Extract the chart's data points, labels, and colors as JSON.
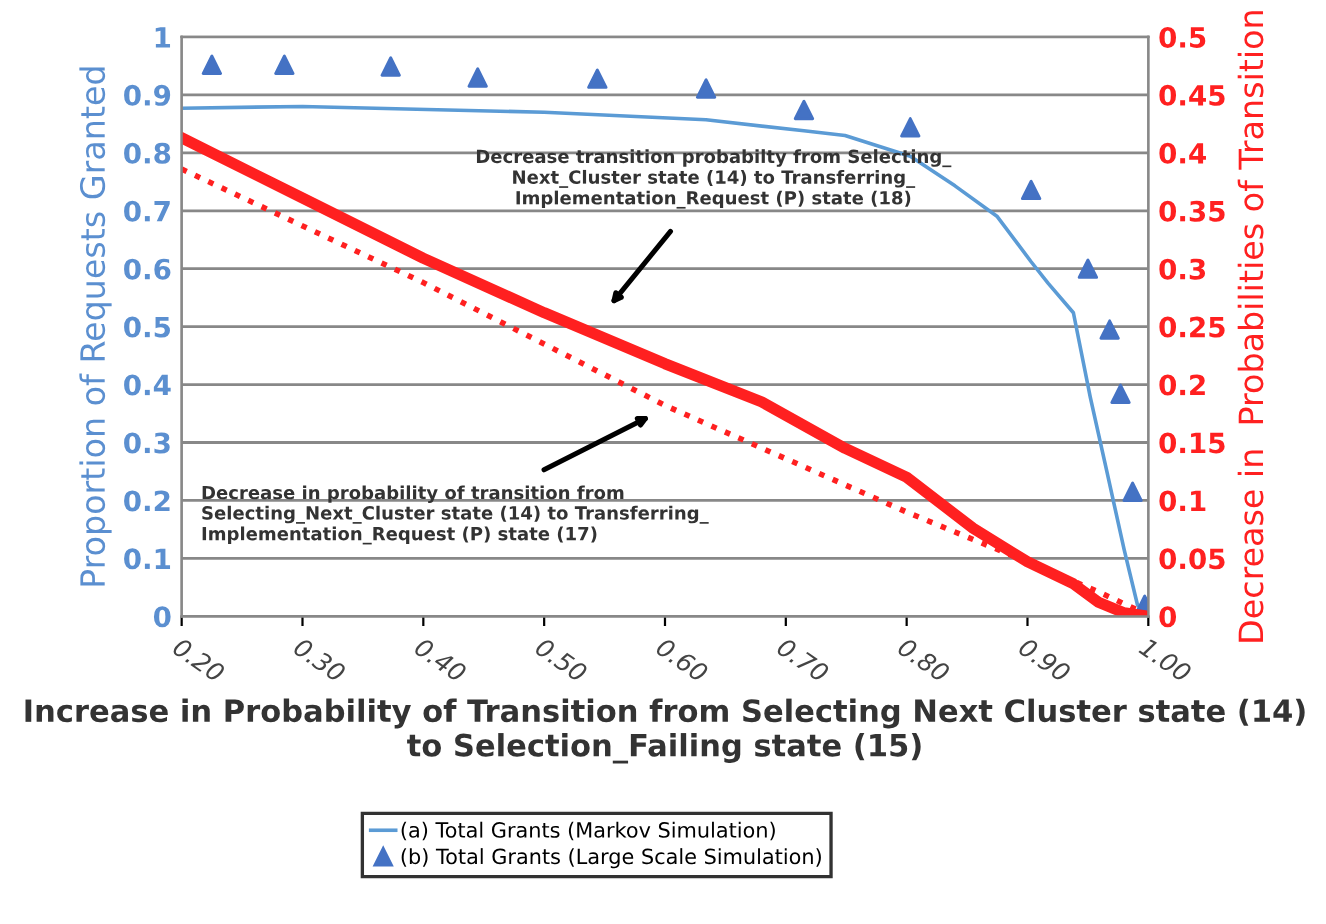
{
  "chart_data": {
    "type": "line",
    "xlabel": "Increase in Probability of Transition from Selecting Next Cluster state (14) to Selection_Failing state (15)",
    "ylabel": "Proportion of Requests Granted",
    "y2label": "Decrease in  Probabilities of Transition",
    "xlim": [
      0.2,
      1.0
    ],
    "xticks": [
      {
        "value": 0.2,
        "label": "0.20"
      },
      {
        "value": 0.3,
        "label": "0.30"
      },
      {
        "value": 0.4,
        "label": "0.40"
      },
      {
        "value": 0.5,
        "label": "0.50"
      },
      {
        "value": 0.6,
        "label": "0.60"
      },
      {
        "value": 0.7,
        "label": "0.70"
      },
      {
        "value": 0.8,
        "label": "0.80"
      },
      {
        "value": 0.9,
        "label": "0.90"
      },
      {
        "value": 1.0,
        "label": "1.00"
      }
    ],
    "ylim": [
      0,
      1
    ],
    "yticks": [
      0,
      0.1,
      0.2,
      0.3,
      0.4,
      0.5,
      0.6,
      0.7,
      0.8,
      0.9,
      1
    ],
    "y2lim": [
      0,
      0.5
    ],
    "y2ticks": [
      0,
      0.05,
      0.1,
      0.15,
      0.2,
      0.25,
      0.3,
      0.35,
      0.4,
      0.45,
      0.5
    ],
    "grid": "y",
    "legend": "bottom",
    "series": [
      {
        "name": "(a) Total Grants (Markov Simulation)",
        "color": "#5b9bd5",
        "marker": "none",
        "line_style": "solid",
        "x": [
          0.2,
          0.3,
          0.5,
          0.634,
          0.715,
          0.749,
          0.803,
          0.84,
          0.875,
          0.903,
          0.917,
          0.938,
          0.952,
          0.966,
          0.98,
          0.991,
          1.0
        ],
        "values": [
          0.877,
          0.88,
          0.87,
          0.857,
          0.838,
          0.83,
          0.794,
          0.743,
          0.69,
          0.612,
          0.575,
          0.524,
          0.378,
          0.247,
          0.115,
          0.02,
          0
        ]
      },
      {
        "name": "(b) Total Grants (Large Scale Simulation)",
        "type": "scatter",
        "color": "#4472c4",
        "marker": "triangle",
        "x": [
          0.225,
          0.285,
          0.373,
          0.445,
          0.544,
          0.634,
          0.715,
          0.803,
          0.903,
          0.95,
          0.968,
          0.977,
          0.987,
          0.997
        ],
        "values": [
          0.952,
          0.952,
          0.949,
          0.93,
          0.928,
          0.911,
          0.874,
          0.844,
          0.736,
          0.6,
          0.495,
          0.384,
          0.215,
          0.02
        ]
      },
      {
        "axis": "y2",
        "color": "#ff2020",
        "marker": "none",
        "line_style": "solid",
        "x": [
          0.2,
          0.3,
          0.4,
          0.5,
          0.6,
          0.68,
          0.749,
          0.8,
          0.855,
          0.9,
          0.938,
          0.959,
          0.98,
          1.0
        ],
        "values": [
          0.413,
          0.361,
          0.309,
          0.262,
          0.218,
          0.185,
          0.145,
          0.12,
          0.076,
          0.047,
          0.028,
          0.012,
          0.003,
          0
        ]
      },
      {
        "axis": "y2",
        "color": "#ff2020",
        "marker": "none",
        "line_style": "dotted",
        "x": [
          0.2,
          0.4,
          0.6,
          0.8,
          0.9,
          0.959,
          1.0
        ],
        "values": [
          0.386,
          0.288,
          0.182,
          0.09,
          0.047,
          0.021,
          0.001
        ]
      }
    ],
    "annotations": [
      "Decrease transition probabilty from Selecting_\nNext_Cluster state (14) to Transferring_\nImplementation_Request (P) state (18)",
      "Decrease in probability of transition from\nSelecting_Next_Cluster state (14) to Transferring_\nImplementation_Request (P) state (17)"
    ]
  }
}
